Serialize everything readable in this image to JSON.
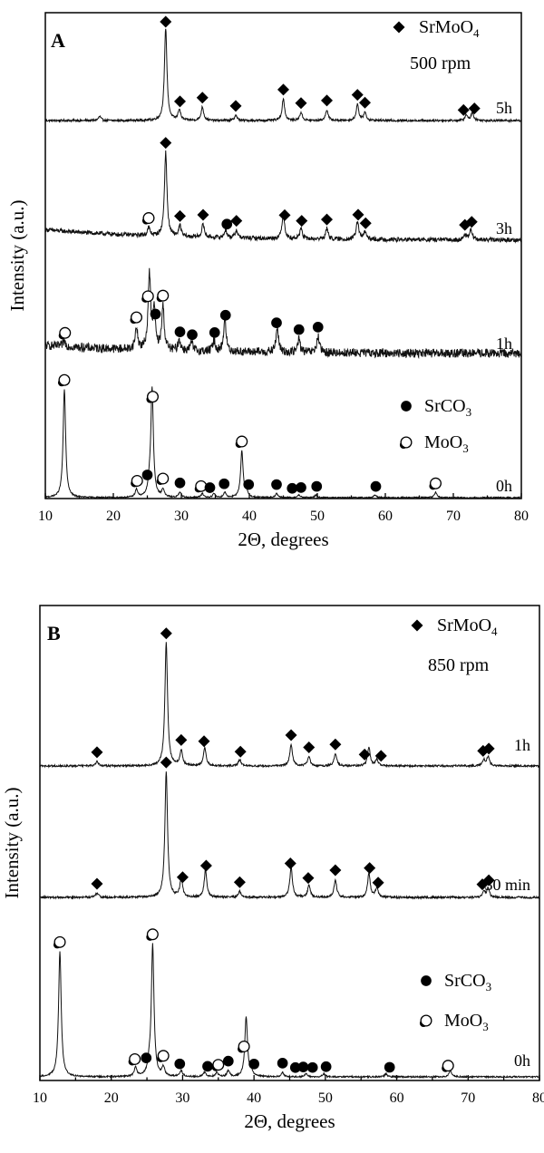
{
  "chart_data": [
    {
      "type": "line",
      "panel_label": "A",
      "xlabel": "2Θ, degrees",
      "ylabel": "Intensity (a.u.)",
      "xlim": [
        10,
        80
      ],
      "xticks": [
        10,
        20,
        30,
        40,
        50,
        60,
        70,
        80
      ],
      "legend_top": {
        "marker": "diamond",
        "label_main": "SrMoO",
        "label_sub": "4",
        "condition": "500 rpm"
      },
      "legend_bottom": [
        {
          "marker": "filled-circle",
          "label_main": "SrCO",
          "label_sub": "3"
        },
        {
          "marker": "open-circle",
          "label_main": "MoO",
          "label_sub": "3"
        }
      ],
      "series": [
        {
          "name": "5h",
          "baseline": 0.0,
          "noise": 0.4,
          "peaks": [
            [
              18.0,
              1.5
            ],
            [
              27.7,
              34
            ],
            [
              29.7,
              4
            ],
            [
              33.1,
              5
            ],
            [
              38.0,
              2
            ],
            [
              45.0,
              8
            ],
            [
              47.6,
              3
            ],
            [
              51.4,
              4
            ],
            [
              55.9,
              6
            ],
            [
              57.0,
              3
            ],
            [
              71.9,
              2
            ],
            [
              72.8,
              3
            ]
          ],
          "markers": [
            {
              "x": 27.7,
              "m": "diamond"
            },
            {
              "x": 29.8,
              "m": "diamond"
            },
            {
              "x": 33.1,
              "m": "diamond"
            },
            {
              "x": 38.0,
              "m": "diamond"
            },
            {
              "x": 45.0,
              "m": "diamond"
            },
            {
              "x": 47.6,
              "m": "diamond"
            },
            {
              "x": 51.4,
              "m": "diamond"
            },
            {
              "x": 55.9,
              "m": "diamond"
            },
            {
              "x": 57.0,
              "m": "diamond"
            },
            {
              "x": 71.5,
              "m": "diamond"
            },
            {
              "x": 73.1,
              "m": "diamond"
            }
          ]
        },
        {
          "name": "3h",
          "baseline": 4.0,
          "noise": 0.8,
          "peaks": [
            [
              25.2,
              3
            ],
            [
              27.7,
              32
            ],
            [
              29.8,
              4
            ],
            [
              33.2,
              5
            ],
            [
              36.5,
              3
            ],
            [
              38.1,
              3
            ],
            [
              45.0,
              10
            ],
            [
              47.6,
              4
            ],
            [
              51.4,
              4
            ],
            [
              55.9,
              7
            ],
            [
              57.0,
              3
            ],
            [
              71.7,
              2
            ],
            [
              72.6,
              4
            ]
          ],
          "markers": [
            {
              "x": 25.2,
              "m": "open-circle"
            },
            {
              "x": 27.7,
              "m": "diamond"
            },
            {
              "x": 29.8,
              "m": "diamond"
            },
            {
              "x": 33.2,
              "m": "diamond"
            },
            {
              "x": 36.7,
              "m": "filled-circle"
            },
            {
              "x": 38.1,
              "m": "diamond"
            },
            {
              "x": 45.2,
              "m": "diamond"
            },
            {
              "x": 47.7,
              "m": "diamond"
            },
            {
              "x": 51.4,
              "m": "diamond"
            },
            {
              "x": 56.0,
              "m": "diamond"
            },
            {
              "x": 57.1,
              "m": "diamond"
            },
            {
              "x": 71.7,
              "m": "diamond"
            },
            {
              "x": 72.7,
              "m": "diamond"
            }
          ]
        },
        {
          "name": "1h",
          "baseline": 3.0,
          "noise": 1.6,
          "peaks": [
            [
              12.8,
              2
            ],
            [
              23.4,
              8
            ],
            [
              25.3,
              28
            ],
            [
              26.0,
              14
            ],
            [
              27.3,
              16
            ],
            [
              29.7,
              4
            ],
            [
              31.5,
              3
            ],
            [
              34.8,
              4
            ],
            [
              36.4,
              12
            ],
            [
              44.1,
              9
            ],
            [
              47.3,
              5
            ],
            [
              50.1,
              6
            ]
          ],
          "markers": [
            {
              "x": 12.9,
              "m": "open-circle"
            },
            {
              "x": 23.4,
              "m": "open-circle"
            },
            {
              "x": 25.1,
              "m": "open-circle"
            },
            {
              "x": 26.2,
              "m": "filled-circle"
            },
            {
              "x": 27.3,
              "m": "open-circle"
            },
            {
              "x": 29.8,
              "m": "filled-circle"
            },
            {
              "x": 31.6,
              "m": "filled-circle"
            },
            {
              "x": 34.9,
              "m": "filled-circle"
            },
            {
              "x": 36.5,
              "m": "filled-circle"
            },
            {
              "x": 44.0,
              "m": "filled-circle"
            },
            {
              "x": 47.3,
              "m": "filled-circle"
            },
            {
              "x": 50.1,
              "m": "filled-circle"
            }
          ]
        },
        {
          "name": "0h",
          "baseline": 0.0,
          "noise": 0.25,
          "peaks": [
            [
              12.8,
              42
            ],
            [
              23.4,
              3
            ],
            [
              25.3,
              4
            ],
            [
              25.7,
              42
            ],
            [
              27.3,
              3
            ],
            [
              29.8,
              2
            ],
            [
              33.1,
              1.5
            ],
            [
              34.8,
              1.5
            ],
            [
              36.4,
              2
            ],
            [
              38.9,
              18
            ],
            [
              39.6,
              2
            ],
            [
              44.0,
              1.5
            ],
            [
              47.3,
              1
            ],
            [
              49.8,
              1
            ],
            [
              58.5,
              1
            ],
            [
              67.4,
              2
            ]
          ],
          "markers": [
            {
              "x": 12.8,
              "m": "open-circle"
            },
            {
              "x": 23.5,
              "m": "open-circle"
            },
            {
              "x": 25.0,
              "m": "filled-circle"
            },
            {
              "x": 25.8,
              "m": "open-circle"
            },
            {
              "x": 27.3,
              "m": "open-circle"
            },
            {
              "x": 29.8,
              "m": "filled-circle"
            },
            {
              "x": 32.9,
              "m": "open-circle"
            },
            {
              "x": 34.2,
              "m": "filled-circle"
            },
            {
              "x": 36.3,
              "m": "filled-circle"
            },
            {
              "x": 38.9,
              "m": "open-circle"
            },
            {
              "x": 39.9,
              "m": "filled-circle"
            },
            {
              "x": 44.0,
              "m": "filled-circle"
            },
            {
              "x": 46.3,
              "m": "filled-circle"
            },
            {
              "x": 47.6,
              "m": "filled-circle"
            },
            {
              "x": 49.9,
              "m": "filled-circle"
            },
            {
              "x": 58.6,
              "m": "filled-circle"
            },
            {
              "x": 67.4,
              "m": "open-circle"
            }
          ]
        }
      ]
    },
    {
      "type": "line",
      "panel_label": "B",
      "xlabel": "2Θ, degrees",
      "ylabel": "Intensity (a.u.)",
      "xlim": [
        10,
        80
      ],
      "xticks": [
        10,
        20,
        30,
        40,
        50,
        60,
        70,
        80
      ],
      "legend_top": {
        "marker": "diamond",
        "label_main": "SrMoO",
        "label_sub": "4",
        "condition": "850 rpm"
      },
      "legend_bottom": [
        {
          "marker": "filled-circle",
          "label_main": "SrCO",
          "label_sub": "3"
        },
        {
          "marker": "open-circle",
          "label_main": "MoO",
          "label_sub": "3"
        }
      ],
      "series": [
        {
          "name": "1h",
          "baseline": 0.0,
          "noise": 0.3,
          "peaks": [
            [
              18.0,
              1.5
            ],
            [
              27.7,
              40
            ],
            [
              29.8,
              5
            ],
            [
              33.1,
              6
            ],
            [
              38.0,
              2
            ],
            [
              45.2,
              7
            ],
            [
              47.7,
              3
            ],
            [
              51.4,
              4
            ],
            [
              56.1,
              6
            ],
            [
              57.2,
              2
            ],
            [
              72.2,
              2
            ],
            [
              72.8,
              3
            ]
          ],
          "markers": [
            {
              "x": 18.0,
              "m": "diamond"
            },
            {
              "x": 27.7,
              "m": "diamond"
            },
            {
              "x": 29.8,
              "m": "diamond"
            },
            {
              "x": 33.0,
              "m": "diamond"
            },
            {
              "x": 38.1,
              "m": "diamond"
            },
            {
              "x": 45.2,
              "m": "diamond"
            },
            {
              "x": 47.7,
              "m": "diamond"
            },
            {
              "x": 51.4,
              "m": "diamond"
            },
            {
              "x": 55.5,
              "m": "diamond"
            },
            {
              "x": 57.8,
              "m": "diamond"
            },
            {
              "x": 72.1,
              "m": "diamond"
            },
            {
              "x": 72.9,
              "m": "diamond"
            }
          ]
        },
        {
          "name": "30 min",
          "baseline": 0.0,
          "noise": 0.35,
          "peaks": [
            [
              18.0,
              1.5
            ],
            [
              27.7,
              42
            ],
            [
              29.8,
              6
            ],
            [
              33.2,
              9
            ],
            [
              38.0,
              2
            ],
            [
              45.2,
              10
            ],
            [
              47.7,
              4
            ],
            [
              51.4,
              6
            ],
            [
              56.1,
              8
            ],
            [
              57.2,
              3
            ],
            [
              72.2,
              2
            ],
            [
              72.8,
              3
            ]
          ],
          "markers": [
            {
              "x": 18.0,
              "m": "diamond"
            },
            {
              "x": 27.7,
              "m": "diamond"
            },
            {
              "x": 30.0,
              "m": "diamond"
            },
            {
              "x": 33.3,
              "m": "diamond"
            },
            {
              "x": 38.0,
              "m": "diamond"
            },
            {
              "x": 45.1,
              "m": "diamond"
            },
            {
              "x": 47.6,
              "m": "diamond"
            },
            {
              "x": 51.4,
              "m": "diamond"
            },
            {
              "x": 56.2,
              "m": "diamond"
            },
            {
              "x": 57.4,
              "m": "diamond"
            },
            {
              "x": 72.0,
              "m": "diamond"
            },
            {
              "x": 72.9,
              "m": "diamond"
            }
          ]
        },
        {
          "name": "0h",
          "baseline": 0.0,
          "noise": 0.25,
          "peaks": [
            [
              12.8,
              42
            ],
            [
              23.4,
              3
            ],
            [
              25.3,
              3
            ],
            [
              25.8,
              44
            ],
            [
              27.3,
              3
            ],
            [
              29.8,
              2
            ],
            [
              33.1,
              1.5
            ],
            [
              34.8,
              1.5
            ],
            [
              36.4,
              2
            ],
            [
              38.9,
              20
            ],
            [
              39.6,
              2
            ],
            [
              44.0,
              1.5
            ],
            [
              47.3,
              1
            ],
            [
              49.8,
              1
            ],
            [
              58.5,
              1
            ],
            [
              67.5,
              2
            ]
          ],
          "markers": [
            {
              "x": 12.8,
              "m": "open-circle"
            },
            {
              "x": 23.3,
              "m": "open-circle"
            },
            {
              "x": 24.9,
              "m": "filled-circle"
            },
            {
              "x": 25.8,
              "m": "open-circle"
            },
            {
              "x": 27.3,
              "m": "open-circle"
            },
            {
              "x": 29.6,
              "m": "filled-circle"
            },
            {
              "x": 33.5,
              "m": "filled-circle"
            },
            {
              "x": 35.0,
              "m": "open-circle"
            },
            {
              "x": 36.4,
              "m": "filled-circle"
            },
            {
              "x": 38.6,
              "m": "open-circle"
            },
            {
              "x": 40.0,
              "m": "filled-circle"
            },
            {
              "x": 44.0,
              "m": "filled-circle"
            },
            {
              "x": 45.8,
              "m": "filled-circle"
            },
            {
              "x": 46.9,
              "m": "filled-circle"
            },
            {
              "x": 48.2,
              "m": "filled-circle"
            },
            {
              "x": 50.1,
              "m": "filled-circle"
            },
            {
              "x": 59.0,
              "m": "filled-circle"
            },
            {
              "x": 67.2,
              "m": "open-circle"
            }
          ]
        }
      ]
    }
  ]
}
